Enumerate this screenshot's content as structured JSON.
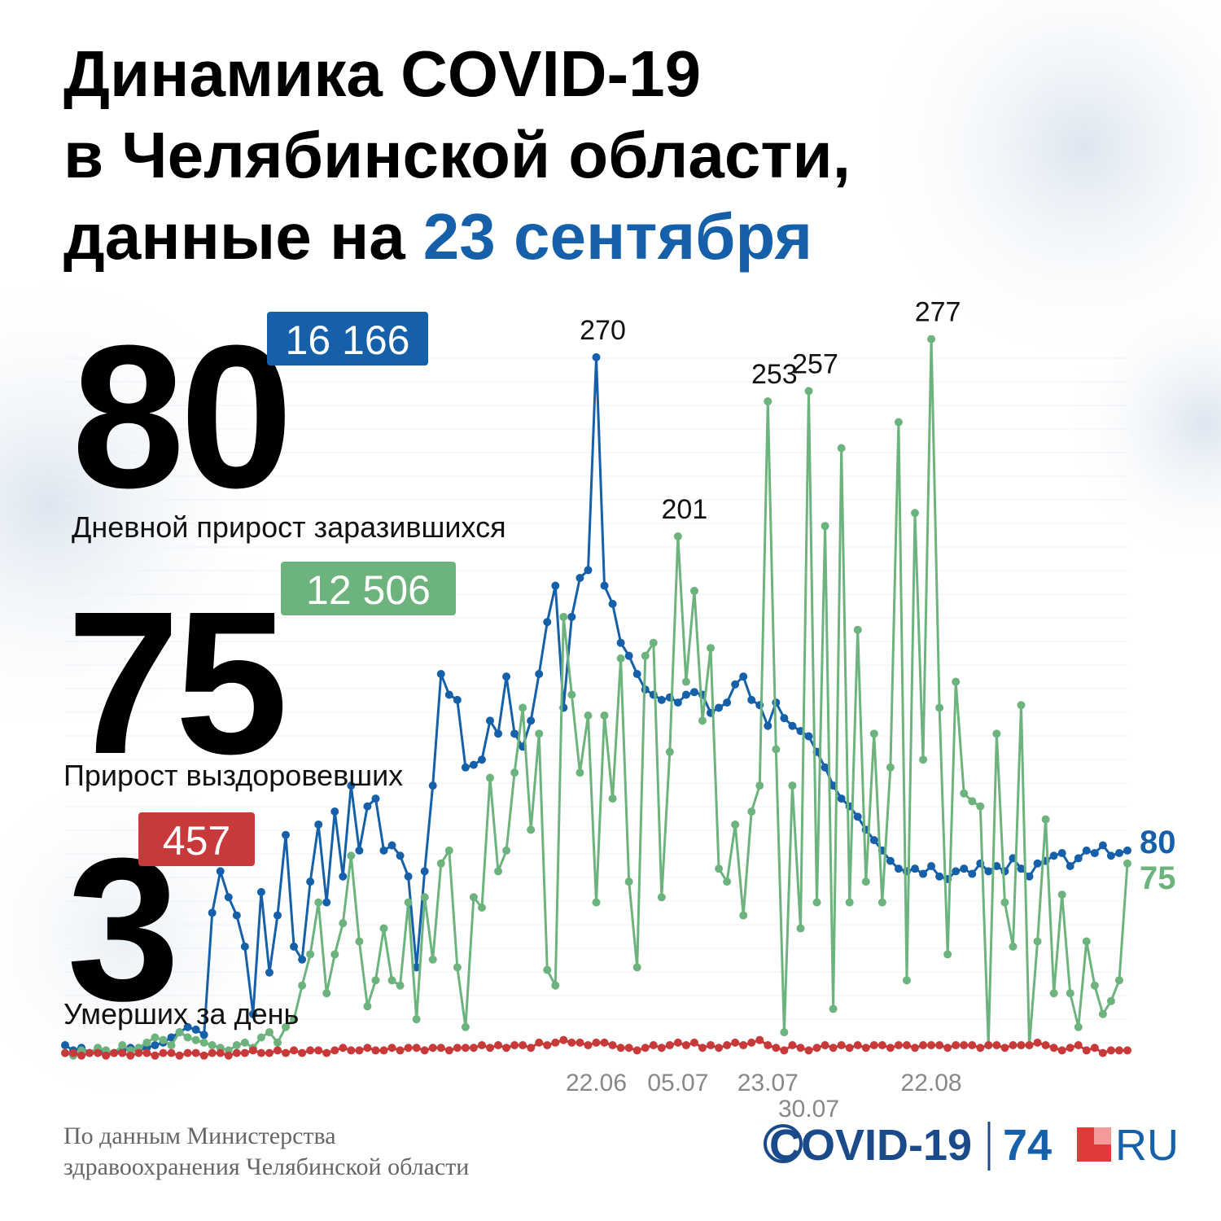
{
  "chart_data": {
    "type": "line",
    "title": [
      "Динамика COVID-19",
      "в Челябинской области,",
      "данные на",
      "23 сентября"
    ],
    "categories": [
      null,
      null,
      null,
      null,
      null,
      null,
      null,
      null,
      null,
      null,
      null,
      null,
      null,
      null,
      null,
      null,
      null,
      null,
      null,
      null,
      null,
      null,
      null,
      null,
      null,
      null,
      null,
      null,
      null,
      null,
      null,
      null,
      null,
      null,
      null,
      null,
      null,
      null,
      null,
      null,
      null,
      null,
      null,
      null,
      null,
      null,
      null,
      null,
      null,
      null,
      null,
      null,
      null,
      null,
      null,
      null,
      null,
      null,
      null,
      null,
      null,
      null,
      null,
      null,
      null,
      "22.06",
      null,
      null,
      null,
      null,
      null,
      null,
      null,
      null,
      null,
      "05.07",
      null,
      null,
      null,
      null,
      null,
      null,
      null,
      null,
      null,
      null,
      "23.07",
      null,
      null,
      null,
      null,
      "30.07",
      null,
      null,
      null,
      null,
      null,
      null,
      null,
      null,
      null,
      null,
      null,
      null,
      null,
      null,
      "22.08",
      null,
      null,
      null,
      null,
      null,
      null,
      null,
      null,
      null,
      null,
      null,
      null,
      null,
      null,
      null,
      null,
      null,
      null,
      null,
      null,
      null,
      null,
      null,
      null
    ],
    "ylim": [
      0,
      280
    ],
    "series": [
      {
        "name": "Дневной прирост заразившихся",
        "color": "#1560a8",
        "total": {
          "value": 16166,
          "label": "16 166"
        },
        "values": [
          5,
          3,
          4,
          2,
          3,
          2,
          2,
          3,
          4,
          3,
          4,
          5,
          6,
          8,
          10,
          12,
          11,
          9,
          56,
          72,
          62,
          55,
          43,
          17,
          64,
          33,
          55,
          86,
          43,
          38,
          68,
          90,
          60,
          95,
          70,
          105,
          80,
          97,
          100,
          80,
          82,
          78,
          70,
          35,
          72,
          105,
          148,
          140,
          138,
          112,
          113,
          115,
          130,
          125,
          147,
          125,
          120,
          130,
          148,
          168,
          182,
          135,
          170,
          185,
          188,
          270,
          182,
          175,
          160,
          155,
          148,
          142,
          140,
          138,
          139,
          137,
          140,
          141,
          140,
          133,
          135,
          137,
          144,
          147,
          138,
          136,
          128,
          137,
          131,
          128,
          126,
          124,
          118,
          112,
          105,
          100,
          97,
          93,
          88,
          84,
          80,
          76,
          73,
          72,
          73,
          71,
          74,
          70,
          69,
          72,
          73,
          71,
          75,
          72,
          74,
          72,
          77,
          73,
          70,
          75,
          76,
          78,
          79,
          74,
          77,
          80,
          79,
          82,
          78,
          79,
          80
        ]
      },
      {
        "name": "Прирост выздоровевших",
        "color": "#6db37e",
        "total": {
          "value": 12506,
          "label": "12 506"
        },
        "values": [
          2,
          1,
          3,
          2,
          4,
          3,
          2,
          5,
          3,
          4,
          6,
          8,
          7,
          5,
          10,
          8,
          7,
          6,
          5,
          4,
          3,
          5,
          6,
          4,
          8,
          10,
          6,
          12,
          15,
          28,
          40,
          60,
          25,
          40,
          52,
          78,
          45,
          20,
          30,
          50,
          30,
          28,
          60,
          15,
          62,
          38,
          75,
          80,
          35,
          12,
          62,
          58,
          108,
          72,
          80,
          110,
          135,
          88,
          125,
          34,
          28,
          170,
          140,
          110,
          132,
          60,
          132,
          100,
          154,
          68,
          35,
          155,
          160,
          62,
          118,
          201,
          145,
          180,
          130,
          158,
          73,
          68,
          90,
          55,
          95,
          105,
          253,
          119,
          10,
          105,
          50,
          257,
          60,
          205,
          19,
          235,
          60,
          165,
          68,
          125,
          60,
          112,
          245,
          30,
          210,
          115,
          277,
          135,
          40,
          145,
          102,
          99,
          97,
          5,
          125,
          60,
          43,
          136,
          5,
          45,
          92,
          25,
          63,
          25,
          12,
          45,
          28,
          17,
          22,
          30,
          75
        ]
      },
      {
        "name": "Умерших за день",
        "color": "#c83a3a",
        "total": {
          "value": 457,
          "label": "457"
        },
        "values": [
          2,
          2,
          1,
          2,
          2,
          1,
          2,
          2,
          1,
          2,
          2,
          1,
          2,
          2,
          1,
          2,
          2,
          1,
          2,
          2,
          1,
          2,
          2,
          3,
          2,
          2,
          3,
          2,
          3,
          2,
          3,
          3,
          2,
          3,
          4,
          3,
          3,
          4,
          3,
          3,
          4,
          3,
          4,
          4,
          3,
          4,
          4,
          3,
          4,
          4,
          4,
          5,
          4,
          5,
          4,
          5,
          5,
          4,
          6,
          5,
          6,
          7,
          6,
          6,
          5,
          6,
          6,
          5,
          4,
          4,
          3,
          4,
          5,
          4,
          5,
          6,
          5,
          6,
          4,
          5,
          4,
          5,
          6,
          5,
          6,
          7,
          5,
          4,
          3,
          5,
          4,
          3,
          4,
          5,
          4,
          5,
          4,
          5,
          4,
          5,
          5,
          4,
          5,
          5,
          4,
          5,
          5,
          5,
          4,
          5,
          5,
          5,
          4,
          5,
          5,
          4,
          5,
          5,
          5,
          6,
          5,
          4,
          3,
          4,
          5,
          3,
          4,
          2,
          3,
          3,
          3
        ]
      }
    ],
    "source": [
      "По данным Министерства",
      "здравоохранения Челябинской области"
    ],
    "logo": [
      "COVID-19",
      "74",
      "RU"
    ]
  }
}
